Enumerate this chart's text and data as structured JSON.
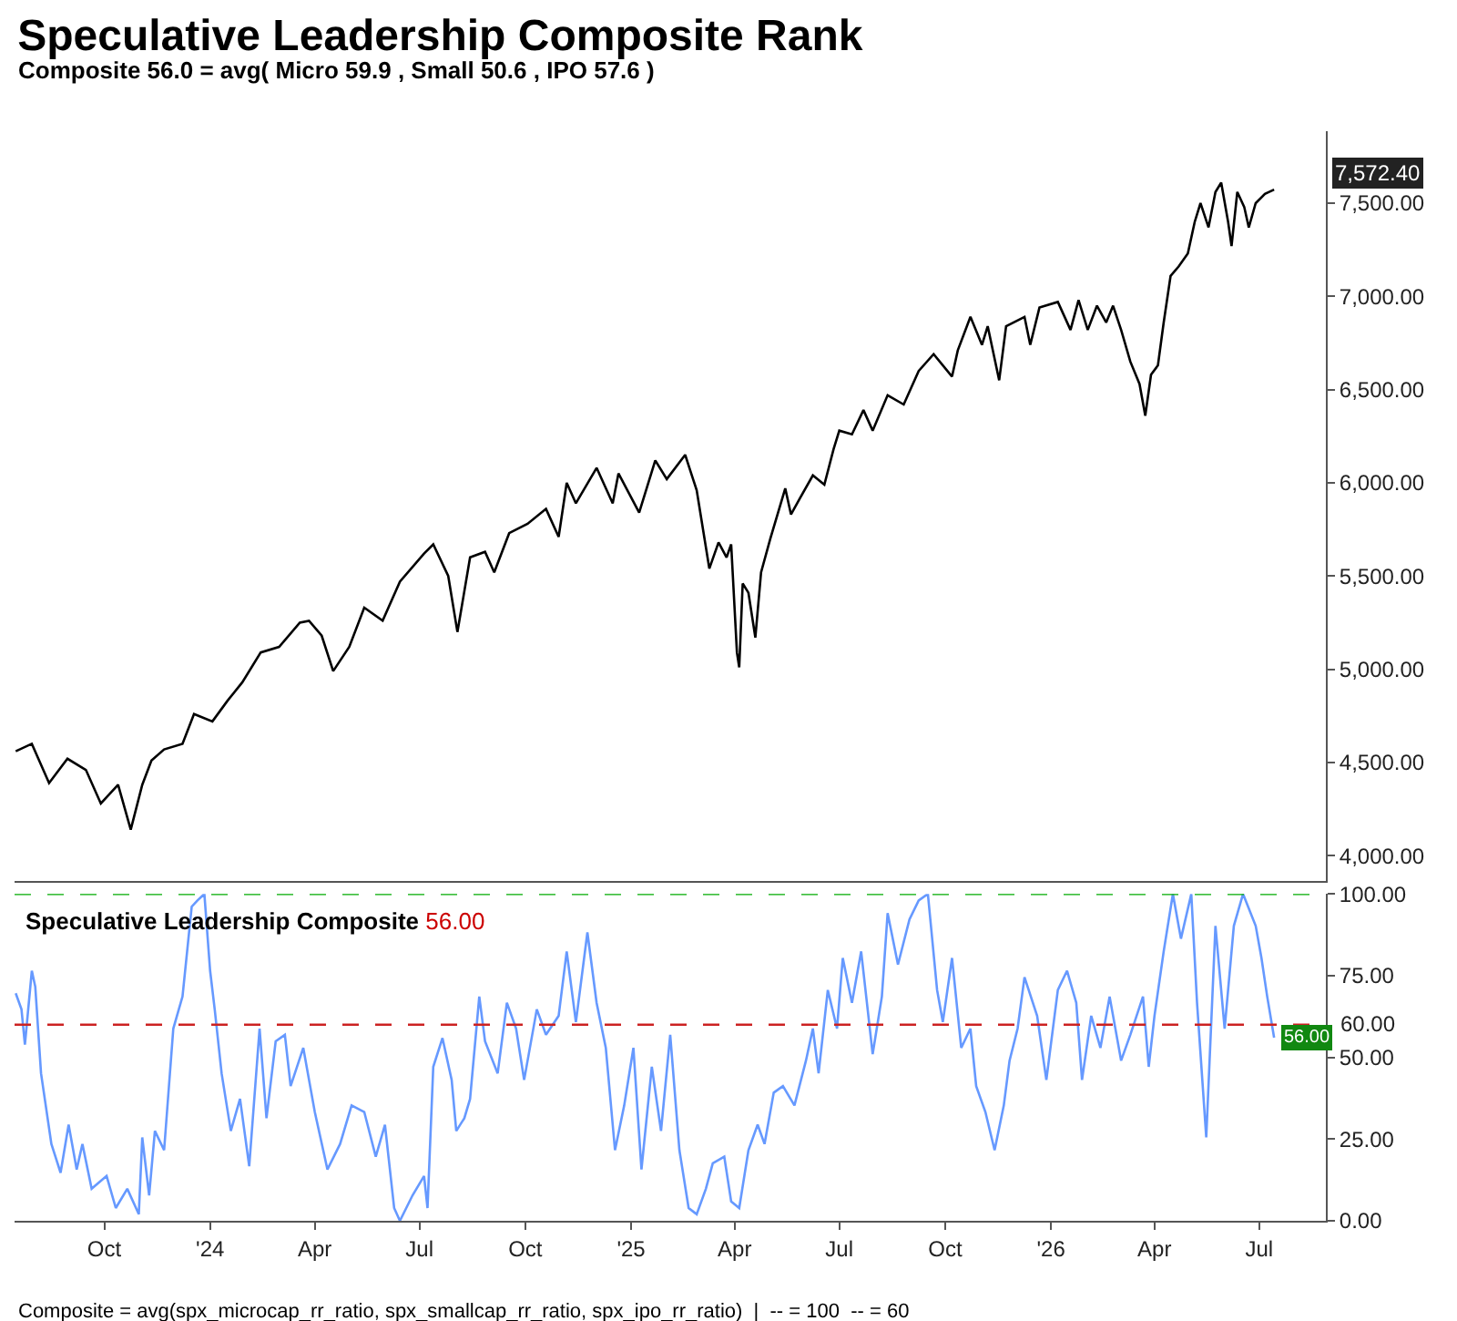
{
  "chart_data": [
    {
      "type": "line",
      "title": "Speculative Leadership Composite Rank",
      "subtitle": "Composite 56.0 = avg( Micro 59.9 , Small 50.6 , IPO 57.6 )",
      "x": [
        "2023-07-16",
        "2023-07-30",
        "2023-08-14",
        "2023-08-30",
        "2023-09-15",
        "2023-09-28",
        "2023-10-13",
        "2023-10-24",
        "2023-11-03",
        "2023-11-11",
        "2023-11-22",
        "2023-12-08",
        "2023-12-18",
        "2024-01-03",
        "2024-01-16",
        "2024-01-29",
        "2024-02-14",
        "2024-03-01",
        "2024-03-19",
        "2024-03-27",
        "2024-04-07",
        "2024-04-17",
        "2024-05-01",
        "2024-05-14",
        "2024-05-30",
        "2024-06-14",
        "2024-07-05",
        "2024-07-13",
        "2024-07-26",
        "2024-08-03",
        "2024-08-14",
        "2024-08-27",
        "2024-09-04",
        "2024-09-17",
        "2024-10-03",
        "2024-10-19",
        "2024-10-30",
        "2024-11-06",
        "2024-11-14",
        "2024-12-02",
        "2024-12-16",
        "2024-12-21",
        "2025-01-08",
        "2025-01-22",
        "2025-02-01",
        "2025-02-17",
        "2025-02-27",
        "2025-03-10",
        "2025-03-18",
        "2025-03-25",
        "2025-03-29",
        "2025-04-03",
        "2025-04-05",
        "2025-04-08",
        "2025-04-13",
        "2025-04-19",
        "2025-04-24",
        "2025-05-02",
        "2025-05-15",
        "2025-05-20",
        "2025-05-28",
        "2025-06-08",
        "2025-06-18",
        "2025-06-26",
        "2025-07-01",
        "2025-07-12",
        "2025-07-22",
        "2025-07-30",
        "2025-08-12",
        "2025-08-26",
        "2025-09-08",
        "2025-09-21",
        "2025-10-07",
        "2025-10-12",
        "2025-10-23",
        "2025-11-02",
        "2025-11-07",
        "2025-11-17",
        "2025-11-23",
        "2025-12-09",
        "2025-12-14",
        "2025-12-22",
        "2026-01-07",
        "2026-01-18",
        "2026-01-25",
        "2026-02-02",
        "2026-02-10",
        "2026-02-18",
        "2026-02-24",
        "2026-03-03",
        "2026-03-11",
        "2026-03-19",
        "2026-03-24",
        "2026-03-29",
        "2026-04-04",
        "2026-04-09",
        "2026-04-15",
        "2026-04-22",
        "2026-04-30",
        "2026-05-06",
        "2026-05-11",
        "2026-05-18",
        "2026-05-24",
        "2026-05-29",
        "2026-06-04",
        "2026-06-07",
        "2026-06-12",
        "2026-06-18",
        "2026-06-22",
        "2026-06-28",
        "2026-07-06",
        "2026-07-14"
      ],
      "series": [
        {
          "color": "#000000",
          "values": [
            4560,
            4600,
            4390,
            4520,
            4460,
            4280,
            4380,
            4140,
            4380,
            4510,
            4570,
            4600,
            4760,
            4720,
            4830,
            4930,
            5090,
            5120,
            5250,
            5260,
            5180,
            4990,
            5120,
            5330,
            5260,
            5470,
            5620,
            5670,
            5500,
            5200,
            5600,
            5630,
            5520,
            5730,
            5780,
            5860,
            5710,
            6000,
            5890,
            6080,
            5890,
            6050,
            5840,
            6120,
            6020,
            6150,
            5960,
            5540,
            5680,
            5600,
            5670,
            5090,
            5010,
            5460,
            5410,
            5170,
            5520,
            5700,
            5970,
            5830,
            5920,
            6040,
            5990,
            6180,
            6280,
            6260,
            6390,
            6280,
            6470,
            6420,
            6600,
            6690,
            6570,
            6710,
            6890,
            6740,
            6840,
            6550,
            6840,
            6890,
            6740,
            6940,
            6970,
            6820,
            6980,
            6820,
            6950,
            6860,
            6950,
            6820,
            6650,
            6530,
            6360,
            6580,
            6630,
            6860,
            7110,
            7160,
            7230,
            7400,
            7500,
            7370,
            7560,
            7610,
            7400,
            7270,
            7560,
            7480,
            7370,
            7500,
            7550,
            7572.4
          ]
        }
      ],
      "annotations": [
        {
          "text": "7,572.40",
          "x": "2026-07-14",
          "y": 7572.4
        }
      ],
      "xlim": [
        "2023-07-15",
        "2026-08-28"
      ],
      "ylim": [
        3865,
        7886
      ],
      "yticks": [
        {
          "value": 4000,
          "label": "4,000.00"
        },
        {
          "value": 4500,
          "label": "4,500.00"
        },
        {
          "value": 5000,
          "label": "5,000.00"
        },
        {
          "value": 5500,
          "label": "5,500.00"
        },
        {
          "value": 6000,
          "label": "6,000.00"
        },
        {
          "value": 6500,
          "label": "6,500.00"
        },
        {
          "value": 7000,
          "label": "7,000.00"
        },
        {
          "value": 7500,
          "label": "7,500.00"
        }
      ],
      "tick_labels": "y",
      "marker": "none",
      "line_style": "solid"
    },
    {
      "type": "line",
      "title": "Speculative Leadership Composite",
      "x": [
        "2023-07-16",
        "2023-07-21",
        "2023-07-24",
        "2023-07-30",
        "2023-08-02",
        "2023-08-07",
        "2023-08-16",
        "2023-08-24",
        "2023-08-31",
        "2023-09-07",
        "2023-09-12",
        "2023-09-20",
        "2023-10-03",
        "2023-10-11",
        "2023-10-21",
        "2023-10-31",
        "2023-11-03",
        "2023-11-09",
        "2023-11-14",
        "2023-11-22",
        "2023-11-30",
        "2023-12-08",
        "2023-12-16",
        "2023-12-21",
        "2023-12-27",
        "2024-01-01",
        "2024-01-05",
        "2024-01-11",
        "2024-01-19",
        "2024-01-27",
        "2024-02-04",
        "2024-02-13",
        "2024-02-19",
        "2024-02-27",
        "2024-03-06",
        "2024-03-11",
        "2024-03-22",
        "2024-04-01",
        "2024-04-12",
        "2024-04-23",
        "2024-05-03",
        "2024-05-14",
        "2024-05-24",
        "2024-06-01",
        "2024-06-09",
        "2024-06-14",
        "2024-06-25",
        "2024-07-05",
        "2024-07-08",
        "2024-07-13",
        "2024-07-21",
        "2024-07-29",
        "2024-08-02",
        "2024-08-09",
        "2024-08-14",
        "2024-08-22",
        "2024-08-27",
        "2024-09-07",
        "2024-09-15",
        "2024-09-23",
        "2024-09-30",
        "2024-10-11",
        "2024-10-19",
        "2024-10-30",
        "2024-11-06",
        "2024-11-14",
        "2024-11-24",
        "2024-12-02",
        "2024-12-10",
        "2024-12-18",
        "2024-12-26",
        "2025-01-03",
        "2025-01-10",
        "2025-01-19",
        "2025-01-27",
        "2025-02-04",
        "2025-02-12",
        "2025-02-20",
        "2025-02-27",
        "2025-03-07",
        "2025-03-13",
        "2025-03-23",
        "2025-03-29",
        "2025-04-05",
        "2025-04-13",
        "2025-04-21",
        "2025-04-27",
        "2025-05-05",
        "2025-05-13",
        "2025-05-23",
        "2025-06-02",
        "2025-06-08",
        "2025-06-13",
        "2025-06-21",
        "2025-06-29",
        "2025-07-04",
        "2025-07-12",
        "2025-07-20",
        "2025-07-30",
        "2025-08-07",
        "2025-08-12",
        "2025-08-21",
        "2025-08-31",
        "2025-09-08",
        "2025-09-16",
        "2025-09-24",
        "2025-09-29",
        "2025-10-07",
        "2025-10-15",
        "2025-10-23",
        "2025-10-28",
        "2025-11-05",
        "2025-11-13",
        "2025-11-21",
        "2025-11-26",
        "2025-12-03",
        "2025-12-09",
        "2025-12-20",
        "2025-12-28",
        "2026-01-07",
        "2026-01-15",
        "2026-01-23",
        "2026-01-28",
        "2026-02-05",
        "2026-02-13",
        "2026-02-21",
        "2026-03-03",
        "2026-03-11",
        "2026-03-22",
        "2026-03-27",
        "2026-04-01",
        "2026-04-09",
        "2026-04-17",
        "2026-04-24",
        "2026-05-03",
        "2026-05-08",
        "2026-05-16",
        "2026-05-24",
        "2026-06-01",
        "2026-06-09",
        "2026-06-17",
        "2026-06-28",
        "2026-07-03",
        "2026-07-08",
        "2026-07-14"
      ],
      "series": [
        {
          "color": "#6699ff",
          "values": [
            69.6,
            64.7,
            53.9,
            76.5,
            71.6,
            45.1,
            23.5,
            14.7,
            29.4,
            15.7,
            23.5,
            9.8,
            13.7,
            3.9,
            9.8,
            2,
            25.5,
            7.8,
            27.5,
            21.6,
            58.8,
            68.6,
            96.1,
            98,
            100,
            76.5,
            64.7,
            45.1,
            27.5,
            37.3,
            16.7,
            58.8,
            31.4,
            54.9,
            56.9,
            41.2,
            52.9,
            33.3,
            15.7,
            23.5,
            35.3,
            33.3,
            19.6,
            29.4,
            3.9,
            0,
            7.8,
            13.7,
            3.9,
            47.1,
            55.9,
            43.1,
            27.5,
            31.4,
            37.3,
            68.6,
            54.9,
            45.1,
            66.7,
            58.8,
            43.1,
            64.7,
            56.9,
            62.7,
            82.4,
            60.8,
            88.2,
            66.7,
            52.9,
            21.6,
            35.3,
            52.9,
            15.7,
            47.1,
            27.5,
            56.9,
            21.6,
            3.9,
            2,
            9.8,
            17.6,
            19.6,
            5.9,
            3.9,
            21.6,
            29.4,
            23.5,
            39.2,
            41.2,
            35.3,
            49,
            58.8,
            45.1,
            70.6,
            58.8,
            80.4,
            66.7,
            82.4,
            51,
            68.6,
            94.1,
            78.4,
            92.2,
            98,
            100,
            70.6,
            60.8,
            80.4,
            52.9,
            58.8,
            41.2,
            33.3,
            21.6,
            35.3,
            49,
            58.8,
            74.5,
            62.7,
            43.1,
            70.6,
            76.5,
            66.7,
            43.1,
            62.7,
            52.9,
            68.6,
            49,
            56.9,
            68.6,
            47.1,
            62.7,
            82.4,
            100,
            86.3,
            100,
            66.7,
            25.5,
            90.2,
            58.8,
            90.2,
            100,
            90.2,
            80.4,
            68.6,
            56
          ]
        }
      ],
      "annotations": [
        "56.00",
        {
          "text": "56.00",
          "x": "2026-07-14",
          "y": 56
        },
        "Composite = avg(spx_microcap_rr_ratio, spx_smallcap_rr_ratio, spx_ipo_rr_ratio)  |  -- = 100  -- = 60"
      ],
      "ref_lines": [
        {
          "axis": "y",
          "value": 100,
          "color": "#00aa00",
          "line_style": "dashed"
        },
        {
          "axis": "y",
          "value": 60,
          "label": "60.00",
          "color": "#cc2222",
          "line_style": "dashed"
        }
      ],
      "xlim": [
        "2023-07-15",
        "2026-08-28"
      ],
      "xticks": [
        {
          "value": "2023-10-01",
          "label": "Oct"
        },
        {
          "value": "2024-01-01",
          "label": "'24"
        },
        {
          "value": "2024-04-01",
          "label": "Apr"
        },
        {
          "value": "2024-07-01",
          "label": "Jul"
        },
        {
          "value": "2024-10-01",
          "label": "Oct"
        },
        {
          "value": "2025-01-01",
          "label": "'25"
        },
        {
          "value": "2025-04-01",
          "label": "Apr"
        },
        {
          "value": "2025-07-01",
          "label": "Jul"
        },
        {
          "value": "2025-10-01",
          "label": "Oct"
        },
        {
          "value": "2026-01-01",
          "label": "'26"
        },
        {
          "value": "2026-04-01",
          "label": "Apr"
        },
        {
          "value": "2026-07-01",
          "label": "Jul"
        }
      ],
      "ylim": [
        0,
        100
      ],
      "yticks": [
        {
          "value": 0,
          "label": "0.00"
        },
        {
          "value": 25,
          "label": "25.00"
        },
        {
          "value": 50,
          "label": "50.00"
        },
        {
          "value": 75,
          "label": "75.00"
        },
        {
          "value": 100,
          "label": "100.00"
        }
      ],
      "marker": "none",
      "line_style": "solid"
    }
  ]
}
